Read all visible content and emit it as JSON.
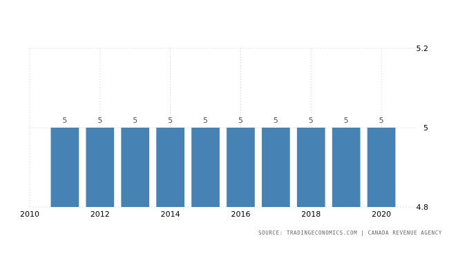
{
  "chart_data": {
    "type": "bar",
    "x": [
      2011,
      2012,
      2013,
      2014,
      2015,
      2016,
      2017,
      2018,
      2019,
      2020
    ],
    "values": [
      5,
      5,
      5,
      5,
      5,
      5,
      5,
      5,
      5,
      5
    ],
    "data_labels": [
      "5",
      "5",
      "5",
      "5",
      "5",
      "5",
      "5",
      "5",
      "5",
      "5"
    ],
    "xlim": [
      2010,
      2021
    ],
    "ylim": [
      4.8,
      5.2
    ],
    "x_ticks": [
      "2010",
      "2012",
      "2014",
      "2016",
      "2018",
      "2020"
    ],
    "y_ticks": [
      "5.2",
      "5",
      "4.8"
    ],
    "bar_color": "#4682b4",
    "grid": true,
    "y_axis_position": "right",
    "title": "",
    "xlabel": "",
    "ylabel": ""
  },
  "source": "SOURCE: TRADINGECONOMICS.COM | CANADA REVENUE AGENCY"
}
